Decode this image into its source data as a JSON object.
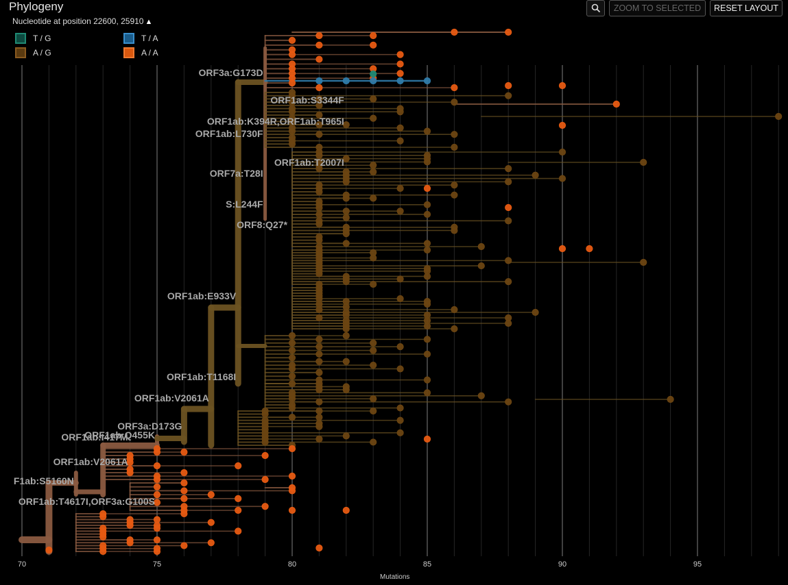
{
  "panel": {
    "title": "Phylogeny",
    "subtitle": "Nucleotide at position 22600, 25910",
    "zoom_selected_label": "ZOOM TO SELECTED",
    "reset_layout_label": "RESET LAYOUT",
    "zoom_icon": "magnifier-icon"
  },
  "legend": [
    {
      "label": "T / G",
      "fill": "#0d4a40",
      "stroke": "#1f8a74"
    },
    {
      "label": "T / A",
      "fill": "#1a5c8a",
      "stroke": "#3a8fcc"
    },
    {
      "label": "A / G",
      "fill": "#5a3a10",
      "stroke": "#8a5a20"
    },
    {
      "label": "A / A",
      "fill": "#d9580f",
      "stroke": "#f07a30"
    }
  ],
  "colors": {
    "aa": "#e65a12",
    "ag": "#6b4512",
    "ag_branch": "#6b5222",
    "tg": "#1f8a74",
    "ta": "#2f7aa8",
    "root_branch": "#8a5a40",
    "grid": "#444"
  },
  "axis": {
    "label": "Mutations",
    "ticks": [
      "70",
      "75",
      "80",
      "85",
      "90",
      "95"
    ],
    "range": [
      70,
      98
    ]
  },
  "mutation_labels": [
    {
      "text": "ORF3a:G173D",
      "mut": 79,
      "y": 111
    },
    {
      "text": "ORF1ab:S3344F",
      "mut": 82,
      "y": 151
    },
    {
      "text": "ORF1ab:K394R,ORF1ab:T965I",
      "mut": 82,
      "y": 182
    },
    {
      "text": "ORF1ab:L730F",
      "mut": 79,
      "y": 200
    },
    {
      "text": "ORF1ab:T2007I",
      "mut": 82,
      "y": 242
    },
    {
      "text": "ORF7a:T28I",
      "mut": 79,
      "y": 258
    },
    {
      "text": "S:L244F",
      "mut": 79,
      "y": 303
    },
    {
      "text": "ORF8:Q27*",
      "mut": 79.9,
      "y": 333
    },
    {
      "text": "ORF1ab:E933V",
      "mut": 78,
      "y": 437
    },
    {
      "text": "ORF1ab:T1168I",
      "mut": 78,
      "y": 555
    },
    {
      "text": "ORF1ab:V2061A",
      "mut": 77,
      "y": 586
    },
    {
      "text": "ORF3a:D173G",
      "mut": 76,
      "y": 627
    },
    {
      "text": "ORF1ab:Q455K",
      "mut": 75,
      "y": 640
    },
    {
      "text": "ORF1ab:I417M",
      "mut": 74,
      "y": 643
    },
    {
      "text": "ORF1ab:V2061A",
      "mut": 74,
      "y": 679
    },
    {
      "text": "F1ab:S5160N",
      "mut": 72,
      "y": 707
    },
    {
      "text": "ORF1ab:T4617I,ORF3a:G100S",
      "mut": 75,
      "y": 737
    }
  ]
}
